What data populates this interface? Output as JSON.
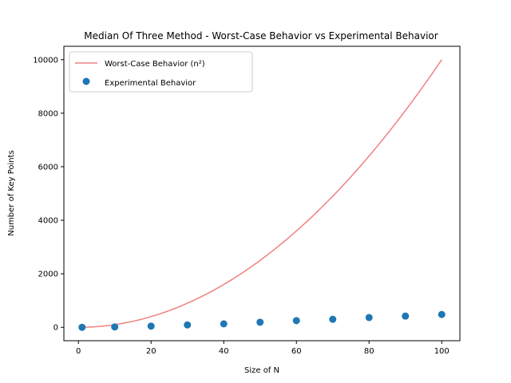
{
  "chart_data": {
    "type": "scatter",
    "title": "Median Of Three Method - Worst-Case Behavior vs Experimental Behavior",
    "xlabel": "Size of N",
    "ylabel": "Number of Key Points",
    "xlim": [
      -4.0,
      105.0
    ],
    "ylim": [
      -500,
      10500
    ],
    "xticks": [
      0,
      20,
      40,
      60,
      80,
      100
    ],
    "yticks": [
      0,
      2000,
      4000,
      6000,
      8000,
      10000
    ],
    "grid": false,
    "legend_position": "upper-left",
    "series": [
      {
        "name": "Worst-Case Behavior (n²)",
        "kind": "line",
        "function": "n^2",
        "x_range": [
          1,
          100
        ],
        "color": "#f08080"
      },
      {
        "name": "Experimental Behavior",
        "kind": "scatter",
        "color": "#1f77b4",
        "x": [
          1,
          10,
          20,
          30,
          40,
          50,
          60,
          70,
          80,
          90,
          100
        ],
        "y": [
          0,
          15,
          45,
          90,
          130,
          190,
          250,
          300,
          365,
          420,
          480
        ]
      }
    ]
  }
}
